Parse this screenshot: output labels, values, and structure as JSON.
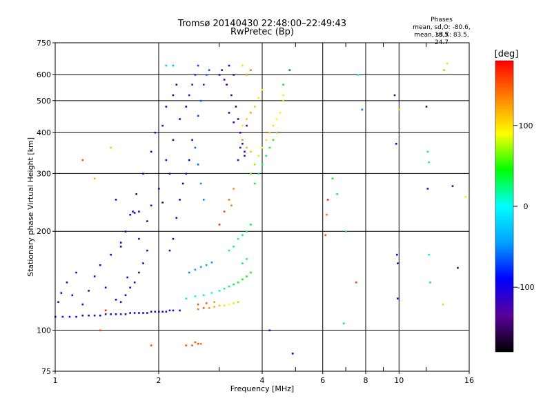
{
  "chart_data": {
    "type": "scatter",
    "title": "Tromsø 20140430 22:48:00–22:49:43",
    "subtitle": "RwPretec (Bp)",
    "xlabel": "Frequency [MHz]",
    "ylabel": "Stationary phase Virtual Height [km]",
    "xscale": "log",
    "yscale": "log",
    "xlim": [
      1,
      16
    ],
    "ylim": [
      75,
      750
    ],
    "xticks": [
      "1",
      "2",
      "4",
      "6",
      "8",
      "10",
      "16"
    ],
    "xtick_values": [
      1,
      2,
      4,
      6,
      8,
      10,
      16
    ],
    "xminor": [
      3,
      5,
      7,
      9,
      12
    ],
    "yticks": [
      "75",
      "100",
      "200",
      "300",
      "400",
      "500",
      "600",
      "750"
    ],
    "ytick_values": [
      75,
      100,
      200,
      300,
      400,
      500,
      600,
      750
    ],
    "grid": true,
    "stats": {
      "heading": "Phases",
      "line_o": "mean, sd,O: -80.6, 19.5",
      "line_x": "mean, sd,X:  83.5, 24.7"
    },
    "colorbar": {
      "label": "[deg]",
      "range": [
        -180,
        180
      ],
      "ticks": [
        "-100",
        "0",
        "100"
      ],
      "tick_values": [
        -100,
        0,
        100
      ],
      "colors": [
        "#000000",
        "#5a009a",
        "#0000ff",
        "#00a0ff",
        "#00ffff",
        "#00ff00",
        "#ffff00",
        "#ff8000",
        "#ff0000"
      ]
    },
    "series": [
      {
        "values": [
          [
            1.0,
            110,
            -110
          ],
          [
            1.05,
            110,
            -105
          ],
          [
            1.1,
            110,
            -110
          ],
          [
            1.15,
            110,
            -100
          ],
          [
            1.2,
            111,
            -108
          ],
          [
            1.25,
            111,
            -104
          ],
          [
            1.3,
            111,
            -110
          ],
          [
            1.35,
            111,
            -100
          ],
          [
            1.4,
            112,
            -106
          ],
          [
            1.45,
            112,
            -110
          ],
          [
            1.5,
            112,
            -104
          ],
          [
            1.55,
            112,
            -108
          ],
          [
            1.6,
            112,
            -100
          ],
          [
            1.65,
            113,
            -110
          ],
          [
            1.7,
            113,
            -106
          ],
          [
            1.75,
            113,
            -104
          ],
          [
            1.8,
            113,
            -108
          ],
          [
            1.85,
            113,
            -100
          ],
          [
            1.9,
            114,
            -110
          ],
          [
            1.95,
            114,
            -104
          ],
          [
            2.0,
            114,
            -106
          ],
          [
            2.05,
            114,
            -100
          ],
          [
            2.1,
            114,
            -108
          ],
          [
            2.15,
            115,
            -104
          ],
          [
            2.2,
            115,
            -110
          ],
          [
            2.3,
            115,
            -102
          ],
          [
            1.02,
            122,
            -106
          ],
          [
            1.04,
            130,
            -100
          ],
          [
            1.08,
            140,
            -104
          ],
          [
            1.12,
            128,
            -112
          ],
          [
            1.15,
            150,
            -100
          ],
          [
            1.2,
            120,
            -104
          ],
          [
            1.25,
            132,
            -110
          ],
          [
            1.3,
            146,
            -102
          ],
          [
            1.35,
            158,
            -108
          ],
          [
            1.4,
            135,
            -104
          ],
          [
            1.45,
            170,
            -110
          ],
          [
            1.5,
            124,
            -100
          ],
          [
            1.55,
            185,
            -106
          ],
          [
            1.6,
            200,
            -104
          ],
          [
            1.62,
            145,
            -110
          ],
          [
            1.68,
            230,
            -100
          ],
          [
            1.72,
            260,
            -108
          ],
          [
            1.75,
            190,
            -104
          ],
          [
            1.8,
            300,
            -106
          ],
          [
            1.85,
            215,
            -110
          ],
          [
            1.9,
            350,
            -102
          ],
          [
            1.95,
            400,
            -104
          ],
          [
            2.0,
            270,
            -108
          ],
          [
            2.05,
            420,
            -100
          ],
          [
            2.1,
            480,
            -104
          ],
          [
            2.15,
            300,
            -110
          ],
          [
            2.2,
            520,
            -96
          ],
          [
            2.25,
            560,
            -100
          ],
          [
            1.85,
            175,
            -100
          ],
          [
            1.8,
            160,
            -104
          ],
          [
            1.75,
            150,
            -108
          ],
          [
            1.7,
            140,
            -102
          ],
          [
            1.65,
            135,
            -106
          ],
          [
            1.6,
            128,
            -110
          ],
          [
            1.55,
            122,
            -104
          ],
          [
            1.65,
            225,
            -110
          ],
          [
            1.7,
            228,
            -106
          ],
          [
            1.75,
            230,
            -100
          ],
          [
            1.9,
            240,
            -104
          ],
          [
            2.05,
            245,
            -108
          ],
          [
            2.1,
            330,
            -100
          ],
          [
            2.2,
            380,
            -102
          ],
          [
            2.3,
            440,
            -90
          ],
          [
            2.4,
            480,
            -90
          ],
          [
            2.45,
            520,
            -80
          ],
          [
            2.5,
            560,
            -76
          ],
          [
            2.55,
            600,
            -80
          ],
          [
            2.6,
            640,
            -70
          ],
          [
            2.5,
            380,
            -86
          ],
          [
            2.45,
            330,
            -90
          ],
          [
            2.4,
            300,
            -84
          ],
          [
            2.35,
            280,
            -92
          ],
          [
            2.3,
            250,
            -96
          ],
          [
            2.25,
            220,
            -92
          ],
          [
            2.2,
            190,
            -98
          ],
          [
            2.15,
            175,
            -104
          ],
          [
            2.6,
            450,
            -70
          ],
          [
            2.65,
            500,
            -64
          ],
          [
            2.7,
            560,
            -72
          ],
          [
            2.75,
            600,
            -60
          ],
          [
            2.8,
            620,
            -66
          ],
          [
            2.55,
            360,
            -60
          ],
          [
            2.6,
            320,
            -56
          ],
          [
            2.65,
            280,
            -50
          ],
          [
            2.7,
            250,
            -52
          ],
          [
            2.45,
            150,
            -50
          ],
          [
            2.55,
            153,
            -48
          ],
          [
            2.65,
            156,
            -44
          ],
          [
            2.75,
            158,
            -40
          ],
          [
            2.85,
            161,
            -46
          ],
          [
            3.0,
            600,
            -112
          ],
          [
            3.05,
            620,
            -118
          ],
          [
            3.1,
            580,
            -114
          ],
          [
            3.15,
            560,
            -120
          ],
          [
            3.2,
            640,
            -116
          ],
          [
            3.25,
            520,
            -112
          ],
          [
            3.3,
            600,
            -118
          ],
          [
            3.35,
            480,
            -114
          ],
          [
            3.4,
            440,
            -120
          ],
          [
            3.45,
            400,
            -110
          ],
          [
            3.5,
            370,
            -116
          ],
          [
            3.55,
            340,
            -112
          ],
          [
            3.4,
            330,
            -118
          ],
          [
            3.6,
            420,
            -114
          ],
          [
            3.2,
            460,
            -110
          ],
          [
            3.3,
            430,
            -116
          ],
          [
            3.45,
            360,
            -120
          ],
          [
            3.55,
            350,
            -112
          ],
          [
            2.4,
            125,
            -8
          ],
          [
            2.55,
            127,
            -4
          ],
          [
            2.7,
            128,
            -10
          ],
          [
            2.85,
            130,
            4
          ],
          [
            3.0,
            132,
            10
          ],
          [
            3.1,
            134,
            18
          ],
          [
            3.2,
            136,
            24
          ],
          [
            3.3,
            138,
            30
          ],
          [
            3.4,
            140,
            36
          ],
          [
            3.5,
            143,
            40
          ],
          [
            3.6,
            146,
            44
          ],
          [
            3.7,
            150,
            50
          ],
          [
            3.5,
            160,
            30
          ],
          [
            3.6,
            165,
            28
          ],
          [
            3.4,
            190,
            20
          ],
          [
            3.5,
            195,
            26
          ],
          [
            3.6,
            200,
            30
          ],
          [
            3.3,
            180,
            24
          ],
          [
            3.2,
            175,
            18
          ],
          [
            3.7,
            210,
            36
          ],
          [
            2.6,
            116,
            140
          ],
          [
            2.7,
            117,
            150
          ],
          [
            2.8,
            117,
            130
          ],
          [
            2.9,
            118,
            120
          ],
          [
            3.0,
            119,
            110
          ],
          [
            3.1,
            119,
            100
          ],
          [
            3.2,
            120,
            90
          ],
          [
            3.3,
            121,
            80
          ],
          [
            3.4,
            122,
            70
          ],
          [
            2.6,
            120,
            150
          ],
          [
            2.75,
            121,
            145
          ],
          [
            2.9,
            122,
            130
          ],
          [
            2.4,
            90,
            150
          ],
          [
            2.5,
            90,
            145
          ],
          [
            2.6,
            91,
            155
          ],
          [
            2.65,
            91,
            140
          ],
          [
            2.55,
            92,
            148
          ],
          [
            3.7,
            300,
            60
          ],
          [
            3.8,
            320,
            70
          ],
          [
            3.9,
            340,
            80
          ],
          [
            4.0,
            360,
            90
          ],
          [
            4.1,
            380,
            100
          ],
          [
            4.2,
            400,
            110
          ],
          [
            4.3,
            420,
            100
          ],
          [
            4.4,
            440,
            90
          ],
          [
            4.5,
            460,
            85
          ],
          [
            4.6,
            500,
            80
          ],
          [
            4.6,
            520,
            85
          ],
          [
            4.4,
            400,
            60
          ],
          [
            4.3,
            380,
            50
          ],
          [
            4.2,
            360,
            40
          ],
          [
            4.1,
            340,
            30
          ],
          [
            4.0,
            320,
            20
          ],
          [
            3.9,
            300,
            30
          ],
          [
            3.8,
            280,
            40
          ],
          [
            3.7,
            350,
            110
          ],
          [
            3.6,
            360,
            120
          ],
          [
            3.5,
            380,
            130
          ],
          [
            3.5,
            420,
            100
          ],
          [
            3.6,
            440,
            110
          ],
          [
            3.7,
            460,
            120
          ],
          [
            3.8,
            480,
            110
          ],
          [
            3.9,
            510,
            100
          ],
          [
            4.0,
            540,
            95
          ],
          [
            3.6,
            600,
            130
          ],
          [
            3.7,
            620,
            140
          ],
          [
            3.5,
            640,
            100
          ],
          [
            4.6,
            560,
            40
          ],
          [
            4.8,
            620,
            -60
          ],
          [
            3.0,
            210,
            160
          ],
          [
            3.1,
            230,
            150
          ],
          [
            3.2,
            250,
            140
          ],
          [
            3.3,
            270,
            130
          ],
          [
            3.25,
            240,
            135
          ],
          [
            2.1,
            640,
            -30
          ],
          [
            2.2,
            640,
            -40
          ],
          [
            1.45,
            360,
            110
          ],
          [
            1.2,
            330,
            150
          ],
          [
            1.3,
            290,
            120
          ],
          [
            1.5,
            250,
            -96
          ],
          [
            1.55,
            180,
            -90
          ],
          [
            1.35,
            100,
            160
          ],
          [
            1.9,
            90,
            150
          ],
          [
            1.4,
            115,
            170
          ],
          [
            6.1,
            195,
            150
          ],
          [
            6.2,
            250,
            170
          ],
          [
            6.15,
            225,
            140
          ],
          [
            6.4,
            290,
            40
          ],
          [
            6.6,
            260,
            30
          ],
          [
            6.9,
            105,
            30
          ],
          [
            7.5,
            140,
            160
          ],
          [
            7.0,
            200,
            30
          ],
          [
            7.6,
            600,
            -10
          ],
          [
            9.7,
            520,
            -120
          ],
          [
            9.8,
            370,
            -100
          ],
          [
            9.9,
            160,
            -110
          ],
          [
            9.85,
            170,
            -100
          ],
          [
            9.9,
            125,
            -100
          ],
          [
            10.0,
            470,
            110
          ],
          [
            12.0,
            480,
            -120
          ],
          [
            12.1,
            350,
            20
          ],
          [
            12.2,
            325,
            -10
          ],
          [
            12.1,
            270,
            -100
          ],
          [
            12.2,
            170,
            -10
          ],
          [
            12.3,
            140,
            -20
          ],
          [
            13.4,
            120,
            110
          ],
          [
            13.5,
            620,
            120
          ],
          [
            13.8,
            650,
            100
          ],
          [
            14.3,
            275,
            -110
          ],
          [
            14.8,
            155,
            -150
          ],
          [
            15.6,
            255,
            100
          ],
          [
            4.9,
            85,
            -90
          ],
          [
            4.2,
            100,
            -100
          ],
          [
            7.8,
            470,
            -60
          ]
        ]
      }
    ]
  }
}
